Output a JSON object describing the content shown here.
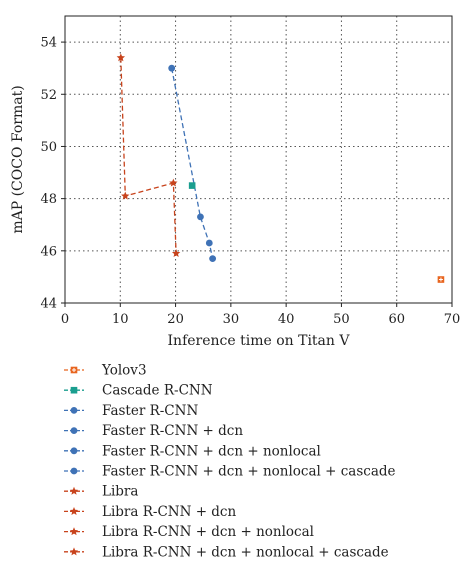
{
  "chart_data": {
    "type": "scatter",
    "xlabel": "Inference time on Titan V",
    "ylabel": "mAP (COCO Format)",
    "xlim": [
      0,
      70
    ],
    "ylim": [
      44,
      55
    ],
    "xticks": [
      0,
      10,
      20,
      30,
      40,
      50,
      60,
      70
    ],
    "yticks": [
      44,
      46,
      48,
      50,
      52,
      54
    ],
    "grid": true,
    "legend_placement": "below",
    "colors": {
      "yolo": "#e8651f",
      "cascade": "#1a9e8f",
      "faster": "#3f72b6",
      "libra": "#c8431c"
    },
    "series": [
      {
        "name": "Yolov3",
        "marker": "plus-square",
        "color": "#e8651f",
        "points": [
          {
            "x": 68.0,
            "y": 44.9
          }
        ]
      },
      {
        "name": "Cascade R-CNN",
        "marker": "square",
        "color": "#1a9e8f",
        "points": [
          {
            "x": 23.0,
            "y": 48.5
          }
        ]
      },
      {
        "name": "Faster R-CNN",
        "marker": "circle",
        "color": "#3f72b6",
        "points": [
          {
            "x": 26.7,
            "y": 45.7
          }
        ]
      },
      {
        "name": "Faster R-CNN + dcn",
        "marker": "circle",
        "color": "#3f72b6",
        "points": [
          {
            "x": 26.1,
            "y": 46.3
          }
        ]
      },
      {
        "name": "Faster R-CNN + dcn + nonlocal",
        "marker": "circle",
        "color": "#3f72b6",
        "points": [
          {
            "x": 24.5,
            "y": 47.3
          }
        ]
      },
      {
        "name": "Faster R-CNN + dcn + nonlocal + cascade",
        "marker": "circle",
        "color": "#3f72b6",
        "points": [
          {
            "x": 19.3,
            "y": 53.0
          }
        ]
      },
      {
        "name": "Libra",
        "marker": "star",
        "color": "#c8431c",
        "points": [
          {
            "x": 20.1,
            "y": 45.9
          }
        ]
      },
      {
        "name": "Libra R-CNN + dcn",
        "marker": "star",
        "color": "#c8431c",
        "points": [
          {
            "x": 19.6,
            "y": 48.6
          }
        ]
      },
      {
        "name": "Libra R-CNN + dcn + nonlocal",
        "marker": "star",
        "color": "#c8431c",
        "points": [
          {
            "x": 10.9,
            "y": 48.1
          }
        ]
      },
      {
        "name": "Libra R-CNN + dcn + nonlocal + cascade",
        "marker": "star",
        "color": "#c8431c",
        "points": [
          {
            "x": 10.1,
            "y": 53.4
          }
        ]
      }
    ],
    "connecting_lines": [
      {
        "color": "#3f72b6",
        "points": [
          {
            "x": 19.3,
            "y": 53.0
          },
          {
            "x": 24.5,
            "y": 47.3
          },
          {
            "x": 26.1,
            "y": 46.3
          },
          {
            "x": 26.7,
            "y": 45.7
          }
        ]
      },
      {
        "color": "#c8431c",
        "points": [
          {
            "x": 10.1,
            "y": 53.4
          },
          {
            "x": 10.9,
            "y": 48.1
          },
          {
            "x": 19.6,
            "y": 48.6
          },
          {
            "x": 20.1,
            "y": 45.9
          }
        ]
      }
    ]
  }
}
